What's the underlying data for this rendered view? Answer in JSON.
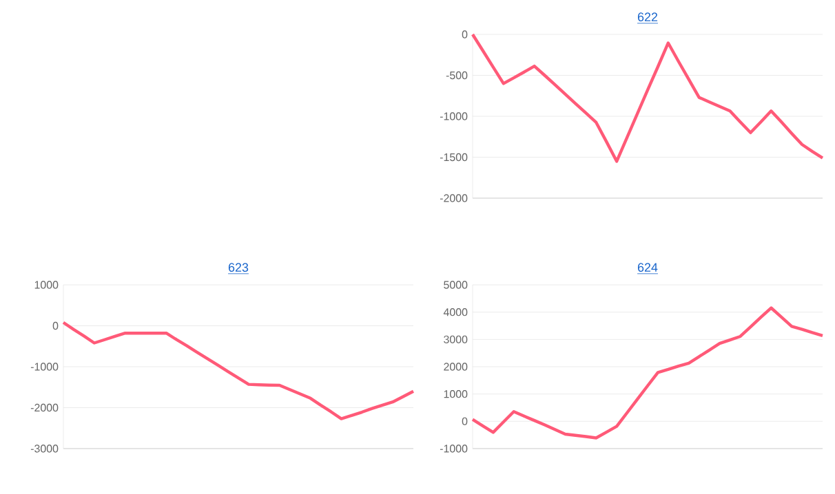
{
  "chart_data": [
    {
      "type": "line",
      "title": "622",
      "categories": [
        null,
        null,
        null,
        null,
        null,
        null,
        null,
        null,
        null,
        null,
        null,
        null,
        null,
        null,
        null,
        null,
        null,
        null,
        null,
        null,
        null,
        null,
        null,
        null,
        null,
        null,
        null,
        null,
        null,
        null,
        null,
        null,
        null,
        null,
        null
      ],
      "values": [
        0,
        -200,
        -400,
        -600,
        -530,
        -460,
        -387,
        -500,
        -615,
        -730,
        -845,
        -960,
        -1075,
        -1310,
        -1550,
        -1260,
        -970,
        -680,
        -395,
        -105,
        -330,
        -550,
        -770,
        -825,
        -880,
        -935,
        -1070,
        -1200,
        -1070,
        -935,
        -1070,
        -1210,
        -1345,
        -1430,
        -1510
      ],
      "color": "#ff5a78",
      "ylim": [
        -2000,
        0
      ],
      "yticks": [
        -2000,
        -1500,
        -1000,
        -500,
        0
      ],
      "grid": "y",
      "tick_labels": "y"
    },
    {
      "type": "line",
      "title": "623",
      "categories": [
        null,
        null,
        null,
        null,
        null,
        null,
        null,
        null,
        null,
        null,
        null,
        null,
        null,
        null,
        null,
        null,
        null,
        null,
        null,
        null,
        null,
        null,
        null,
        null,
        null,
        null,
        null,
        null,
        null,
        null,
        null,
        null,
        null,
        null,
        null
      ],
      "values": [
        80,
        -90,
        -250,
        -420,
        -340,
        -260,
        -180,
        -180,
        -180,
        -180,
        -180,
        -340,
        -490,
        -650,
        -805,
        -960,
        -1120,
        -1275,
        -1430,
        -1440,
        -1450,
        -1455,
        -1560,
        -1665,
        -1770,
        -1940,
        -2100,
        -2270,
        -2190,
        -2110,
        -2020,
        -1940,
        -1860,
        -1730,
        -1600
      ],
      "color": "#ff5a78",
      "ylim": [
        -3000,
        1000
      ],
      "yticks": [
        -3000,
        -2000,
        -1000,
        0,
        1000
      ],
      "grid": "y",
      "tick_labels": "y"
    },
    {
      "type": "line",
      "title": "624",
      "categories": [
        null,
        null,
        null,
        null,
        null,
        null,
        null,
        null,
        null,
        null,
        null,
        null,
        null,
        null,
        null,
        null,
        null,
        null,
        null,
        null,
        null,
        null,
        null,
        null,
        null,
        null,
        null,
        null,
        null,
        null,
        null,
        null,
        null,
        null,
        null
      ],
      "values": [
        70,
        -170,
        -405,
        -25,
        355,
        190,
        30,
        -130,
        -300,
        -470,
        -515,
        -560,
        -610,
        -400,
        -185,
        310,
        805,
        1300,
        1790,
        1900,
        2020,
        2130,
        2370,
        2610,
        2855,
        2980,
        3110,
        3460,
        3810,
        4155,
        3820,
        3480,
        3370,
        3250,
        3140
      ],
      "color": "#ff5a78",
      "ylim": [
        -1000,
        5000
      ],
      "yticks": [
        -1000,
        0,
        1000,
        2000,
        3000,
        4000,
        5000
      ],
      "grid": "y",
      "tick_labels": "y"
    }
  ]
}
